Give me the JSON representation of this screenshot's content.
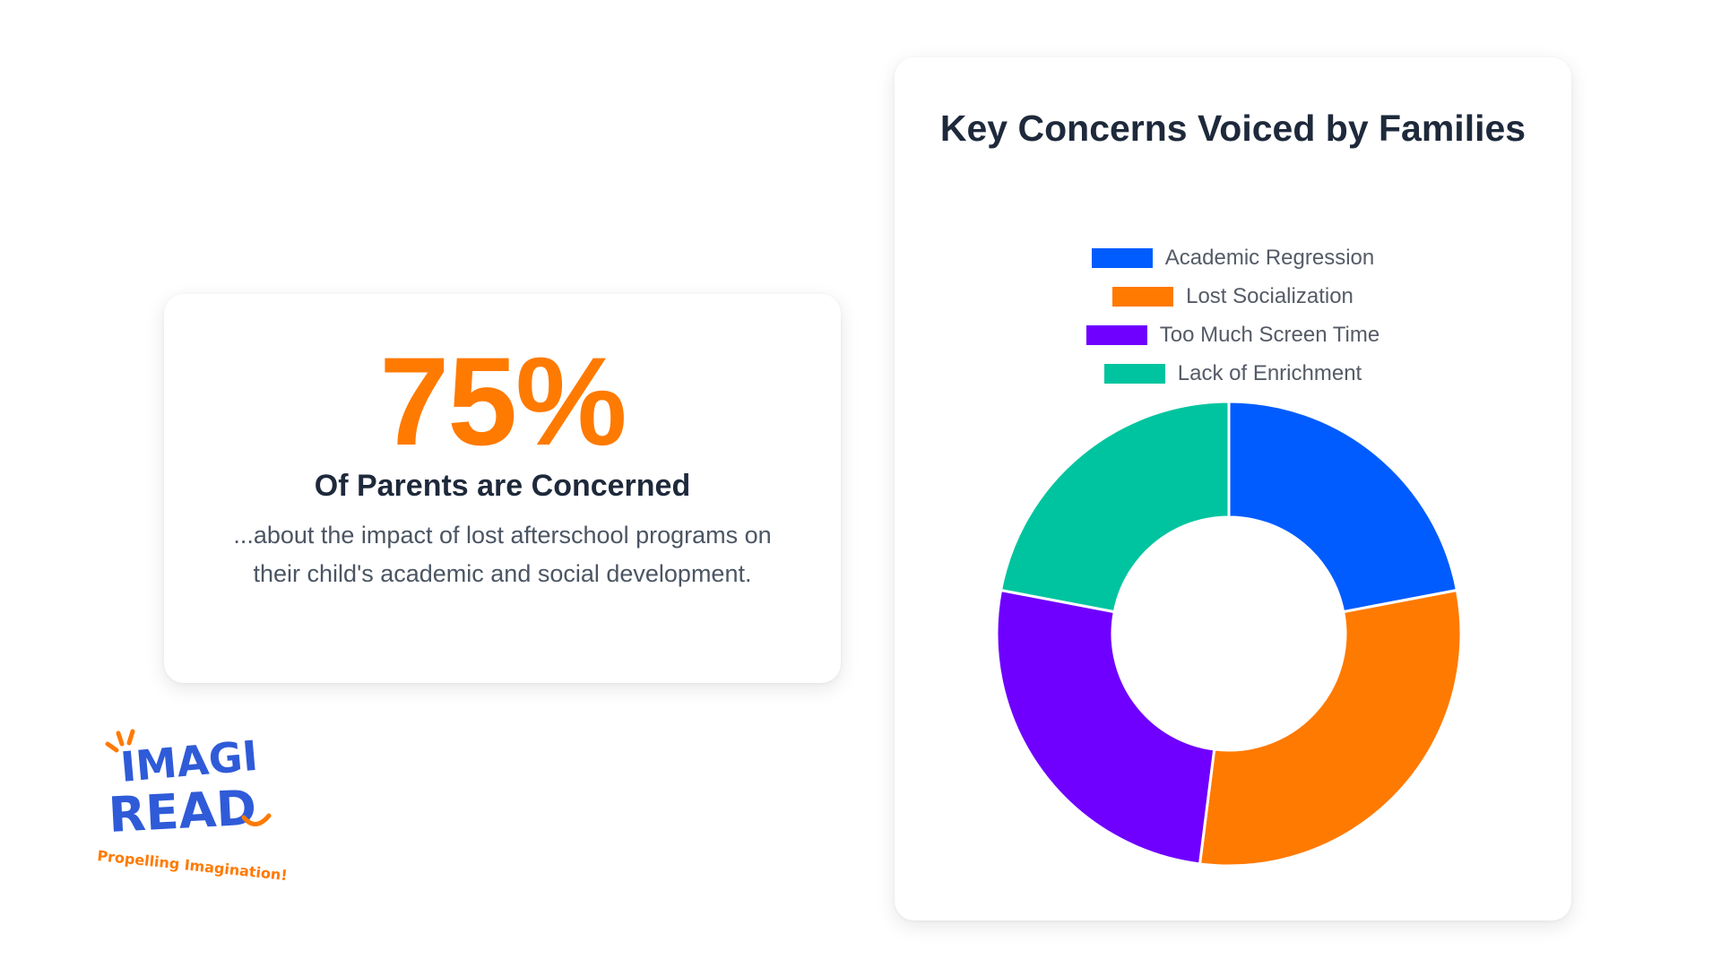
{
  "colors": {
    "accent": "#ff7a00",
    "title": "#1e293b",
    "body": "#4b5563",
    "logo_blue": "#2f5bd8"
  },
  "stat": {
    "value": "75%",
    "heading": "Of Parents are Concerned",
    "description": "...about the impact of lost afterschool programs on their child's academic and social development."
  },
  "logo": {
    "line1": "IMAGI",
    "line2": "READ",
    "tagline": "Propelling Imagination!"
  },
  "chart_data": {
    "type": "pie",
    "variant": "doughnut",
    "title": "Key Concerns Voiced by Families",
    "legend_position": "top",
    "categories": [
      "Academic Regression",
      "Lost Socialization",
      "Too Much Screen Time",
      "Lack of Enrichment"
    ],
    "values": [
      22,
      30,
      26,
      22
    ],
    "colors": [
      "#005cff",
      "#ff7a00",
      "#6f00ff",
      "#00c49f"
    ]
  }
}
